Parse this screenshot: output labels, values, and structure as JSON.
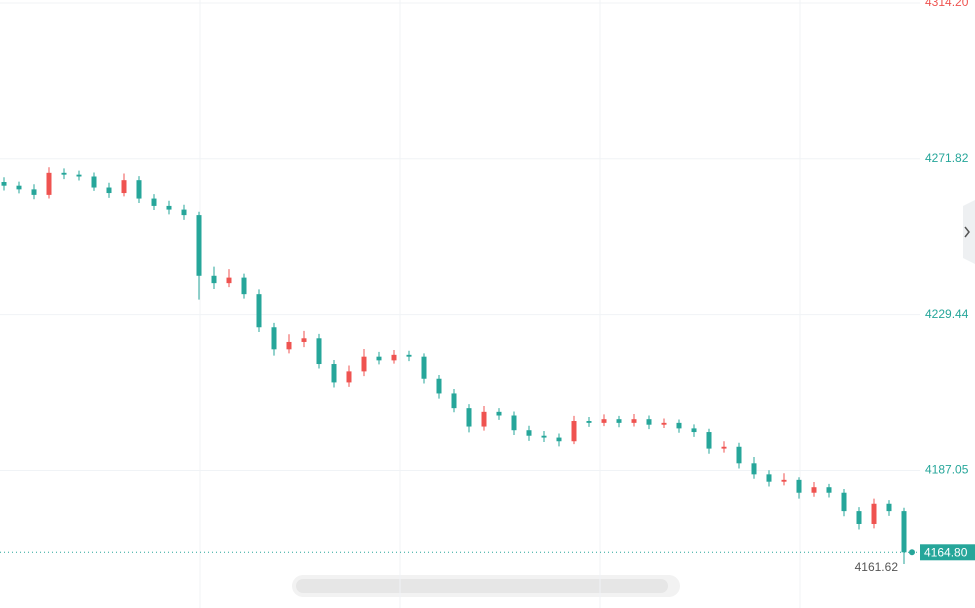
{
  "chart_data": {
    "type": "candlestick",
    "open": [
      4265.5,
      4264.5,
      4263.5,
      4262,
      4268,
      4267.5,
      4267,
      4264,
      4262.5,
      4266,
      4261,
      4259,
      4258,
      4256.5,
      4240,
      4238,
      4239.5,
      4235,
      4226,
      4220,
      4222,
      4223,
      4216,
      4211,
      4214,
      4218,
      4217,
      4218.5,
      4218,
      4212,
      4208,
      4204,
      4199,
      4203,
      4202,
      4198,
      4196.5,
      4196,
      4195,
      4200.5,
      4200,
      4201,
      4200,
      4201,
      4199.5,
      4200,
      4198.5,
      4197.5,
      4193,
      4193.5,
      4189,
      4186,
      4184,
      4184.5,
      4181,
      4182.5,
      4181,
      4176,
      4172.5,
      4178,
      4176
    ],
    "high": [
      4266.8,
      4265.6,
      4264.9,
      4269.5,
      4269.2,
      4268.6,
      4268.1,
      4265.3,
      4267.8,
      4267.1,
      4262.2,
      4260.4,
      4259.3,
      4257.4,
      4242.5,
      4241.8,
      4240.6,
      4236.3,
      4227.2,
      4224.1,
      4225.0,
      4224.2,
      4217.1,
      4215.6,
      4220.1,
      4219.3,
      4219.8,
      4219.6,
      4218.9,
      4213.0,
      4209.2,
      4205.1,
      4204.6,
      4204.0,
      4203.1,
      4199.2,
      4197.8,
      4197.1,
      4201.9,
      4201.6,
      4202.3,
      4201.9,
      4202.4,
      4202.0,
      4201.2,
      4200.9,
      4199.6,
      4198.4,
      4195.0,
      4194.6,
      4190.7,
      4187.1,
      4186.3,
      4185.2,
      4183.9,
      4183.4,
      4182.0,
      4177.1,
      4179.4,
      4179.0,
      4176.9
    ],
    "low": [
      4263.2,
      4262.4,
      4260.8,
      4261.0,
      4266.3,
      4265.9,
      4263.1,
      4261.2,
      4261.6,
      4259.8,
      4257.9,
      4256.7,
      4255.2,
      4233.5,
      4236.4,
      4236.9,
      4233.8,
      4224.7,
      4218.3,
      4218.9,
      4220.6,
      4214.8,
      4209.6,
      4209.8,
      4212.7,
      4215.9,
      4216.1,
      4216.8,
      4210.7,
      4206.6,
      4202.9,
      4197.4,
      4197.9,
      4200.8,
      4196.7,
      4195.1,
      4194.8,
      4193.6,
      4194.2,
      4198.9,
      4199.1,
      4198.8,
      4199.0,
      4198.3,
      4198.6,
      4197.3,
      4196.2,
      4191.6,
      4191.9,
      4187.6,
      4184.8,
      4182.7,
      4183.0,
      4179.4,
      4179.9,
      4179.7,
      4174.6,
      4171.0,
      4171.3,
      4174.7,
      4161.62
    ],
    "close": [
      4264.5,
      4263.5,
      4262,
      4268,
      4267.5,
      4267,
      4264,
      4262.5,
      4266,
      4261,
      4259,
      4258,
      4256.5,
      4240,
      4238,
      4239.5,
      4235,
      4226,
      4220,
      4222,
      4223,
      4216,
      4211,
      4214,
      4218,
      4217,
      4218.5,
      4218,
      4212,
      4208,
      4204,
      4199,
      4203,
      4202,
      4198,
      4196.5,
      4196,
      4195,
      4200.5,
      4200,
      4201,
      4200,
      4201,
      4199.5,
      4200,
      4198.5,
      4197.5,
      4193,
      4193.5,
      4189,
      4186,
      4184,
      4184.5,
      4181,
      4182.5,
      4181,
      4176,
      4172.5,
      4178,
      4176,
      4164.8
    ],
    "up_color": "#ef5350",
    "down_color": "#26a69a",
    "ylim": [
      4149.65,
      4315.0
    ],
    "yticks": [
      4187.05,
      4229.44,
      4271.82,
      {
        "value": 4314.2,
        "label": "4314.20"
      }
    ],
    "ytick_colors": [
      "#26a69a",
      "#26a69a",
      "#26a69a",
      "#ef5350"
    ],
    "last_price": {
      "value": 4164.8,
      "label": "4164.80"
    },
    "grid": true
  }
}
